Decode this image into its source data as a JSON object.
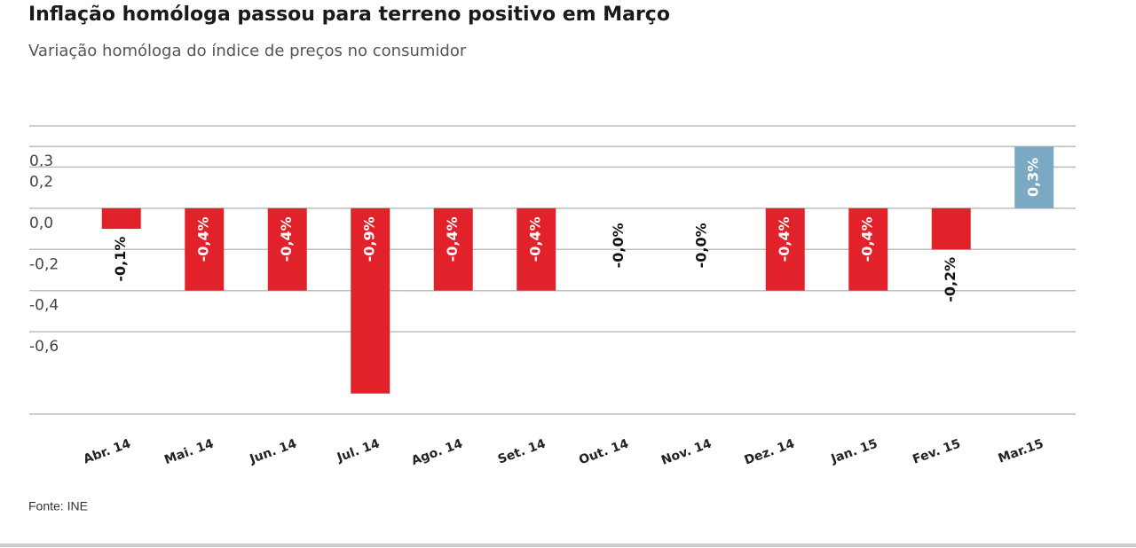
{
  "chart_data": {
    "type": "bar",
    "title": "Inflação homóloga passou para terreno positivo em Março",
    "subtitle": "Variação homóloga do índice de preços no consumidor",
    "source": "Fonte: INE",
    "categories": [
      "Abr. 14",
      "Mai. 14",
      "Jun. 14",
      "Jul. 14",
      "Ago. 14",
      "Set. 14",
      "Out. 14",
      "Nov. 14",
      "Dez. 14",
      "Jan. 15",
      "Fev. 15",
      "Mar.15"
    ],
    "values": [
      -0.1,
      -0.4,
      -0.4,
      -0.9,
      -0.4,
      -0.4,
      0,
      0,
      -0.4,
      -0.4,
      -0.2,
      0.3
    ],
    "value_labels": [
      "-0,1%",
      "-0,4%",
      "-0,4%",
      "-0,9%",
      "-0,4%",
      "-0,4%",
      "-0,0%",
      "-0,0%",
      "-0,4%",
      "-0,4%",
      "-0,2%",
      "0,3%"
    ],
    "negative_color": "#e1222b",
    "positive_color": "#7ba8c2",
    "ylim": [
      -1.0,
      0.4
    ],
    "yticks": [
      {
        "value": 0.3,
        "label": "0,3"
      },
      {
        "value": 0.2,
        "label": "0,2"
      },
      {
        "value": 0,
        "label": "0,0"
      },
      {
        "value": -0.2,
        "label": "-0,2"
      },
      {
        "value": -0.4,
        "label": "-0,4"
      },
      {
        "value": -0.6,
        "label": "-0,6"
      }
    ],
    "grid": true
  }
}
